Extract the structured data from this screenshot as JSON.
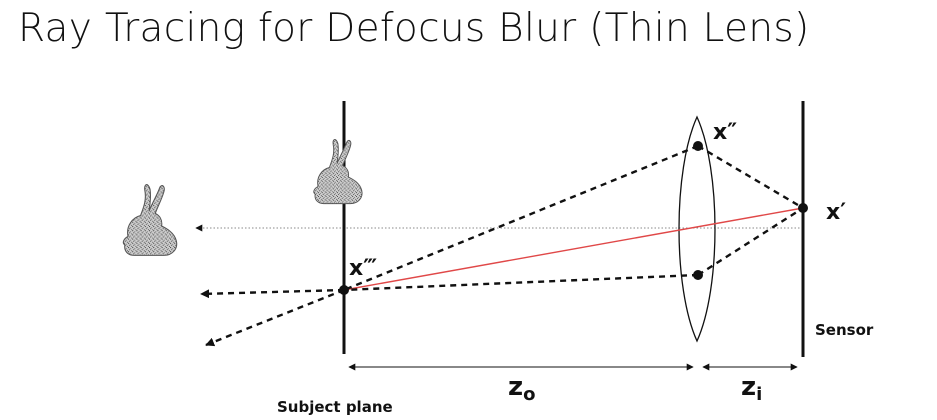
{
  "title": "Ray Tracing for Defocus Blur (Thin Lens)",
  "labels": {
    "x_double_prime": "x″",
    "x_prime": "x′",
    "x_triple_prime": "x‴",
    "sensor": "Sensor",
    "subject_plane": "Subject plane",
    "zo_base": "z",
    "zo_sub": "o",
    "zi_base": "z",
    "zi_sub": "i"
  },
  "colors": {
    "ray_red": "#e04848",
    "ink": "#111111",
    "optical_axis": "#888888"
  },
  "icons": [
    "bunny-icon"
  ]
}
